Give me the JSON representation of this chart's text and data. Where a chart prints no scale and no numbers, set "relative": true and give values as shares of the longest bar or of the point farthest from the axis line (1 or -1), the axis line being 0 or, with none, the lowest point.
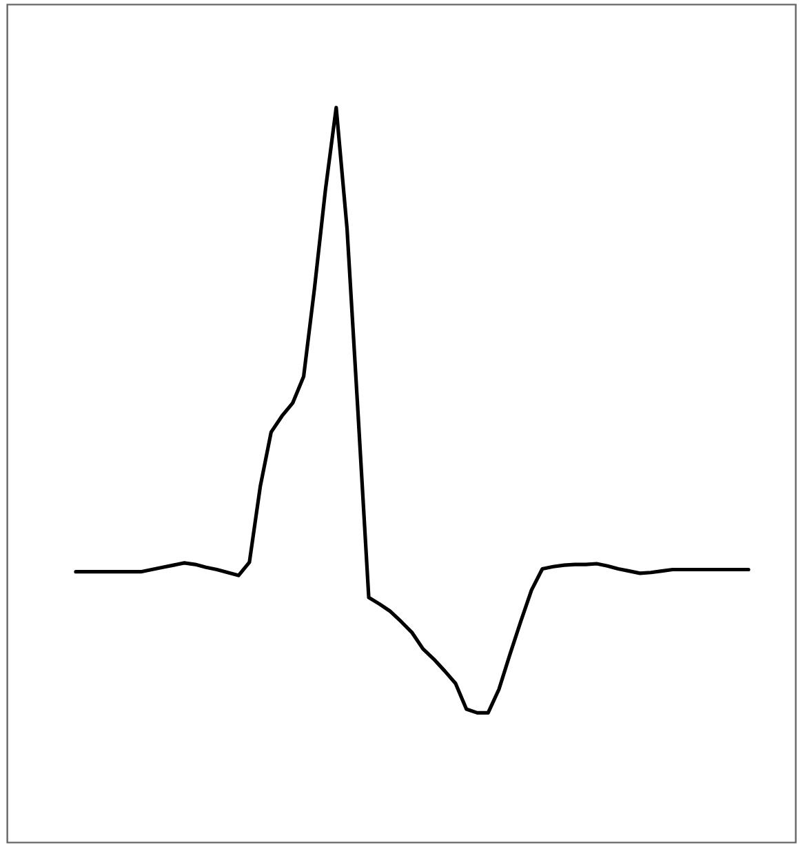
{
  "chart_data": {
    "type": "line",
    "relative": true,
    "categories": [
      null,
      null,
      null,
      null,
      null,
      null,
      null,
      null,
      null,
      null,
      null,
      null,
      null,
      null,
      null,
      null,
      null,
      null,
      null,
      null,
      null,
      null,
      null,
      null,
      null,
      null,
      null,
      null,
      null,
      null,
      null,
      null,
      null,
      null,
      null,
      null,
      null,
      null,
      null,
      null,
      null,
      null,
      null,
      null,
      null,
      null,
      null,
      null,
      null,
      null,
      null,
      null,
      null,
      null,
      null,
      null,
      null,
      null,
      null,
      null,
      null,
      null,
      null
    ],
    "series": [
      {
        "color": "#000000",
        "values": [
          0.368,
          0.368,
          0.368,
          0.368,
          0.368,
          0.368,
          0.368,
          0.371,
          0.374,
          0.377,
          0.38,
          0.378,
          0.374,
          0.371,
          0.367,
          0.363,
          0.381,
          0.484,
          0.558,
          0.58,
          0.598,
          0.634,
          0.754,
          0.887,
          1,
          0.835,
          0.587,
          0.333,
          0.324,
          0.314,
          0.3,
          0.285,
          0.263,
          0.249,
          0.233,
          0.216,
          0.181,
          0.176,
          0.176,
          0.208,
          0.255,
          0.3,
          0.343,
          0.372,
          0.375,
          0.377,
          0.378,
          0.378,
          0.379,
          0.376,
          0.372,
          0.369,
          0.366,
          0.367,
          0.369,
          0.371,
          0.371,
          0.371,
          0.371,
          0.371,
          0.371,
          0.371,
          0.371
        ]
      }
    ]
  }
}
